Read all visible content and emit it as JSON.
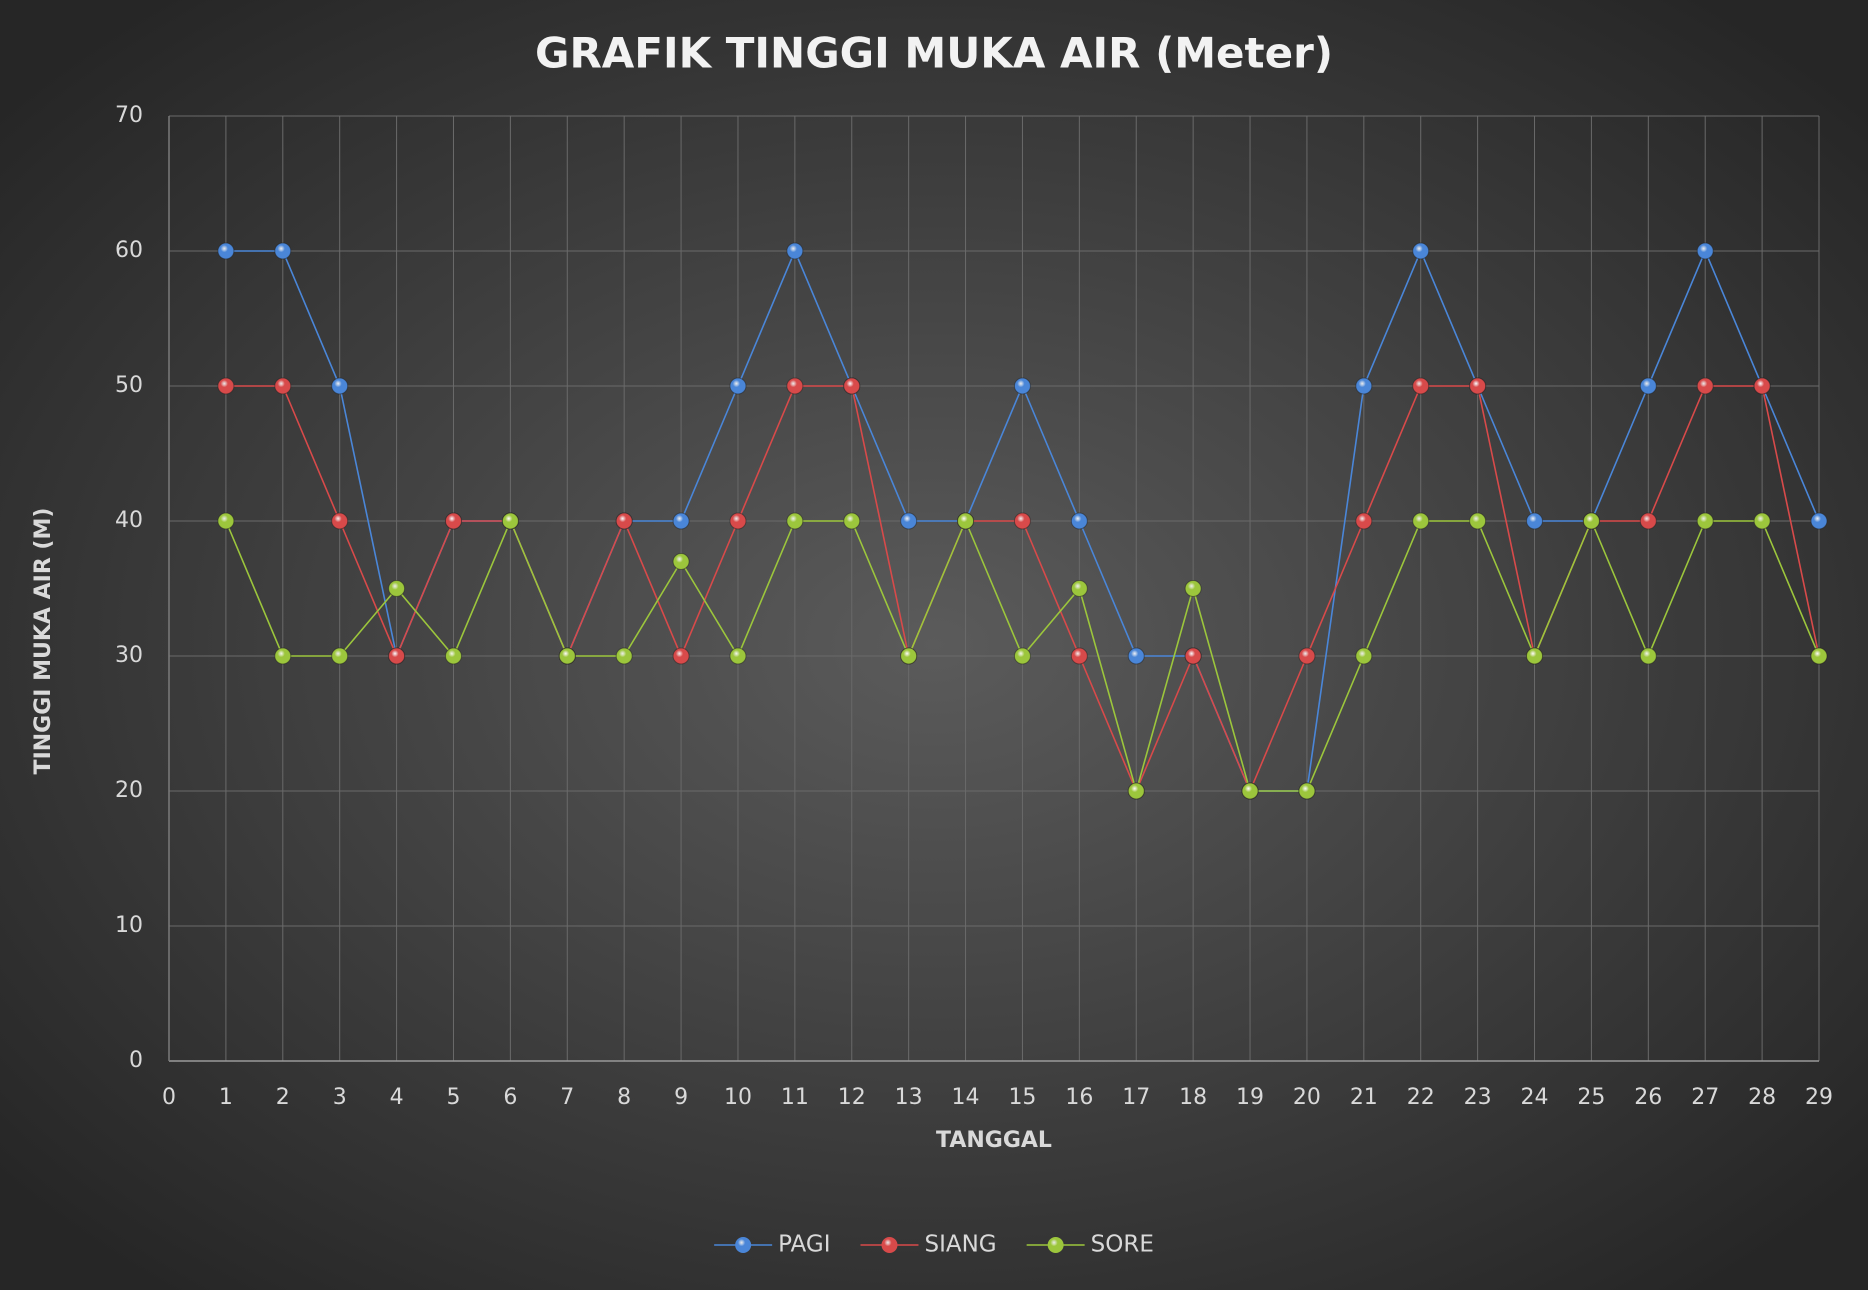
{
  "chart_data": {
    "type": "line",
    "title": "GRAFIK TINGGI MUKA AIR (Meter)",
    "x_label": "TANGGAL",
    "y_label": "TINGGI MUKA AIR (M)",
    "x": [
      1,
      2,
      3,
      4,
      5,
      6,
      7,
      8,
      9,
      10,
      11,
      12,
      13,
      14,
      15,
      16,
      17,
      18,
      19,
      20,
      21,
      22,
      23,
      24,
      25,
      26,
      27,
      28,
      29
    ],
    "series": [
      {
        "name": "PAGI",
        "color": "#4a86d8",
        "values": [
          60,
          60,
          50,
          30,
          40,
          40,
          30,
          40,
          40,
          50,
          60,
          50,
          40,
          40,
          50,
          40,
          30,
          30,
          20,
          20,
          50,
          60,
          50,
          40,
          40,
          50,
          60,
          50,
          40
        ]
      },
      {
        "name": "SIANG",
        "color": "#d84a4a",
        "values": [
          50,
          50,
          40,
          30,
          40,
          40,
          30,
          40,
          30,
          40,
          50,
          50,
          30,
          40,
          40,
          30,
          20,
          30,
          20,
          30,
          40,
          50,
          50,
          30,
          40,
          40,
          50,
          50,
          30
        ]
      },
      {
        "name": "SORE",
        "color": "#9cc63c",
        "values": [
          40,
          30,
          30,
          35,
          30,
          40,
          30,
          30,
          37,
          30,
          40,
          40,
          30,
          40,
          30,
          35,
          20,
          35,
          20,
          20,
          30,
          40,
          40,
          30,
          40,
          30,
          40,
          40,
          30
        ]
      }
    ],
    "xlim": [
      0,
      29
    ],
    "xticks": [
      0,
      1,
      2,
      3,
      4,
      5,
      6,
      7,
      8,
      9,
      10,
      11,
      12,
      13,
      14,
      15,
      16,
      17,
      18,
      19,
      20,
      21,
      22,
      23,
      24,
      25,
      26,
      27,
      28,
      29
    ],
    "ylim": [
      0,
      70
    ],
    "yticks": [
      0,
      10,
      20,
      30,
      40,
      50,
      60,
      70
    ],
    "grid": true,
    "legend": "bottom"
  }
}
